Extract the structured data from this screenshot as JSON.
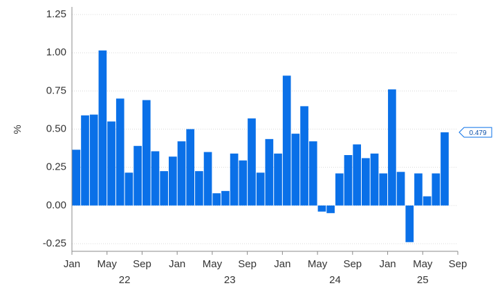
{
  "chart_data": {
    "type": "bar",
    "y_label": "%",
    "x": [
      "2022-01",
      "2022-02",
      "2022-03",
      "2022-04",
      "2022-05",
      "2022-06",
      "2022-07",
      "2022-08",
      "2022-09",
      "2022-10",
      "2022-11",
      "2022-12",
      "2023-01",
      "2023-02",
      "2023-03",
      "2023-04",
      "2023-05",
      "2023-06",
      "2023-07",
      "2023-08",
      "2023-09",
      "2023-10",
      "2023-11",
      "2023-12",
      "2024-01",
      "2024-02",
      "2024-03",
      "2024-04",
      "2024-05",
      "2024-06",
      "2024-07",
      "2024-08",
      "2024-09",
      "2024-10",
      "2024-11",
      "2024-12",
      "2025-01",
      "2025-02",
      "2025-03",
      "2025-04",
      "2025-05",
      "2025-06",
      "2025-07"
    ],
    "values": [
      0.365,
      0.59,
      0.595,
      1.015,
      0.55,
      0.7,
      0.215,
      0.39,
      0.69,
      0.355,
      0.225,
      0.32,
      0.42,
      0.5,
      0.225,
      0.35,
      0.08,
      0.095,
      0.34,
      0.295,
      0.57,
      0.215,
      0.435,
      0.34,
      0.85,
      0.47,
      0.65,
      0.42,
      -0.04,
      -0.05,
      0.21,
      0.33,
      0.4,
      0.31,
      0.34,
      0.21,
      0.76,
      0.22,
      -0.24,
      0.21,
      0.06,
      0.21,
      0.479
    ],
    "last_value_label": "0.479",
    "color": "#0a70e8",
    "xlim": [
      "2022-01",
      "2025-09"
    ],
    "xticks": [
      {
        "value": "2022-01",
        "label": "Jan"
      },
      {
        "value": "2022-05",
        "label": "May"
      },
      {
        "value": "2022-09",
        "label": "Sep"
      },
      {
        "value": "2023-01",
        "label": "Jan"
      },
      {
        "value": "2023-05",
        "label": "May"
      },
      {
        "value": "2023-09",
        "label": "Sep"
      },
      {
        "value": "2024-01",
        "label": "Jan"
      },
      {
        "value": "2024-05",
        "label": "May"
      },
      {
        "value": "2024-09",
        "label": "Sep"
      },
      {
        "value": "2025-01",
        "label": "Jan"
      },
      {
        "value": "2025-05",
        "label": "May"
      },
      {
        "value": "2025-09",
        "label": "Sep"
      }
    ],
    "year_labels": [
      {
        "value": "2022",
        "label": "22"
      },
      {
        "value": "2023",
        "label": "23"
      },
      {
        "value": "2024",
        "label": "24"
      },
      {
        "value": "2025",
        "label": "25"
      }
    ],
    "ylim": [
      -0.3,
      1.3
    ],
    "yticks": [
      1.25,
      {
        "value": 1,
        "label": "1.00"
      },
      0.75,
      {
        "value": 0.5,
        "label": "0.50"
      },
      0.25,
      {
        "value": 0,
        "label": "0.00"
      },
      -0.25
    ],
    "grid": true
  }
}
